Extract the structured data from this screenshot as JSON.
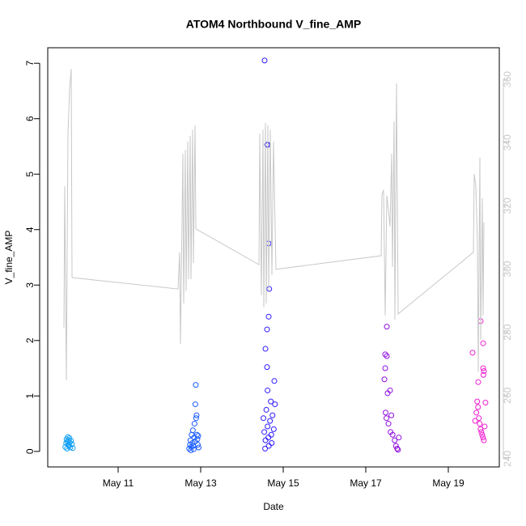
{
  "chart_data": {
    "type": "scatter",
    "title": "ATOM4 Northbound V_fine_AMP",
    "xlabel": "Date",
    "ylabel": "V_fine_AMP",
    "xlim": [
      9.294,
      20.235
    ],
    "ylim": [
      -0.28,
      7.28
    ],
    "y2lim": [
      237.4,
      370
    ],
    "xticks": [
      {
        "value": 11,
        "label": "May 11"
      },
      {
        "value": 13,
        "label": "May 13"
      },
      {
        "value": 15,
        "label": "May 15"
      },
      {
        "value": 17,
        "label": "May 17"
      },
      {
        "value": 19,
        "label": "May 19"
      }
    ],
    "yticks": [
      0,
      1,
      2,
      3,
      4,
      5,
      6,
      7
    ],
    "y2ticks": [
      240,
      260,
      280,
      300,
      320,
      340,
      360
    ],
    "series": [
      {
        "type": "scatter",
        "color": "#12a0f5",
        "x": [
          9.72,
          9.74,
          9.75,
          9.76,
          9.77,
          9.78,
          9.79,
          9.8,
          9.81,
          9.82,
          9.83,
          9.84,
          9.86,
          9.88,
          9.9
        ],
        "values": [
          0.08,
          0.15,
          0.22,
          0.05,
          0.18,
          0.26,
          0.12,
          0.2,
          0.1,
          0.24,
          0.16,
          0.07,
          0.19,
          0.13,
          0.06
        ]
      },
      {
        "type": "scatter",
        "color": "#1a5cff",
        "x": [
          12.72,
          12.74,
          12.75,
          12.77,
          12.78,
          12.8,
          12.81,
          12.82,
          12.84,
          12.85,
          12.86,
          12.87,
          12.88,
          12.89,
          12.9,
          12.91,
          12.92,
          12.93,
          12.94,
          12.95,
          12.76,
          12.83
        ],
        "values": [
          0.05,
          0.12,
          0.2,
          0.08,
          0.3,
          0.15,
          0.38,
          0.1,
          0.25,
          0.5,
          0.18,
          0.85,
          1.2,
          0.6,
          0.65,
          0.3,
          0.22,
          0.12,
          0.28,
          0.07,
          0.02,
          0.04
        ]
      },
      {
        "type": "scatter",
        "color": "#2f1aff",
        "x": [
          14.549,
          14.608,
          14.63,
          14.647,
          14.66,
          14.647,
          14.608,
          14.569,
          14.608,
          14.784,
          14.62,
          14.7,
          14.52,
          14.54,
          14.57,
          14.59,
          14.62,
          14.65,
          14.68,
          14.71,
          14.74,
          14.77,
          14.8,
          14.56,
          14.64,
          14.72
        ],
        "values": [
          7.05,
          5.53,
          5.53,
          3.75,
          2.93,
          2.43,
          2.2,
          1.85,
          1.52,
          1.27,
          1.1,
          0.9,
          0.6,
          0.35,
          0.2,
          0.75,
          0.45,
          0.1,
          0.55,
          0.3,
          0.65,
          0.4,
          0.85,
          0.05,
          0.25,
          0.15
        ]
      },
      {
        "type": "scatter",
        "color": "#9010e0",
        "x": [
          17.51,
          17.471,
          17.51,
          17.471,
          17.451,
          17.588,
          17.529,
          17.48,
          17.5,
          17.55,
          17.6,
          17.62,
          17.65,
          17.7,
          17.73,
          17.76,
          17.78,
          17.8
        ],
        "values": [
          2.25,
          1.75,
          1.72,
          1.5,
          1.3,
          1.1,
          1.05,
          0.7,
          0.6,
          0.5,
          0.35,
          0.65,
          0.3,
          0.2,
          0.1,
          0.05,
          0.03,
          0.25
        ]
      },
      {
        "type": "scatter",
        "color": "#f020d0",
        "x": [
          19.784,
          19.843,
          19.588,
          19.843,
          19.863,
          19.85,
          19.725,
          19.7,
          19.72,
          19.74,
          19.76,
          19.78,
          19.8,
          19.82,
          19.84,
          19.86,
          19.88,
          19.65,
          19.68,
          19.9
        ],
        "values": [
          2.35,
          1.95,
          1.78,
          1.5,
          1.45,
          1.38,
          1.25,
          0.9,
          0.8,
          0.6,
          0.5,
          0.4,
          0.35,
          0.3,
          0.25,
          0.2,
          0.45,
          0.55,
          0.7,
          0.88
        ]
      },
      {
        "type": "line",
        "color": "#c8c8c8",
        "axis": "y2",
        "x": [
          9.686,
          9.706,
          9.745,
          9.784,
          9.824,
          9.863,
          9.882,
          12.451,
          12.49,
          12.51,
          12.569,
          12.588,
          12.627,
          12.647,
          12.686,
          12.706,
          12.745,
          12.765,
          12.804,
          12.824,
          12.863,
          12.882,
          14.412,
          14.431,
          14.471,
          14.51,
          14.529,
          14.569,
          14.588,
          14.627,
          14.647,
          14.686,
          14.725,
          14.765,
          14.824,
          17.373,
          17.392,
          17.431,
          17.471,
          17.51,
          17.549,
          17.588,
          17.627,
          17.647,
          17.686,
          17.706,
          17.745,
          17.784,
          19.608,
          19.627,
          19.667,
          19.706,
          19.725,
          19.765,
          19.784,
          19.824,
          19.843,
          19.863
        ],
        "values": [
          281.5,
          326.2,
          264.8,
          342.9,
          356.9,
          363.3,
          297.3,
          293.7,
          305.3,
          276.3,
          336.5,
          289.1,
          337.7,
          293.0,
          340.3,
          296.8,
          342.1,
          296.8,
          344.1,
          301.9,
          345.4,
          312.7,
          301.4,
          342.9,
          291.7,
          344.1,
          287.9,
          346.2,
          289.1,
          345.4,
          293.0,
          344.1,
          298.1,
          340.3,
          299.9,
          304.2,
          323.7,
          325.0,
          285.3,
          323.2,
          318.6,
          313.4,
          336.5,
          300.6,
          346.7,
          284.0,
          358.7,
          285.8,
          305.3,
          330.1,
          326.2,
          308.3,
          267.4,
          335.2,
          277.6,
          322.4,
          285.3,
          314.7
        ]
      }
    ]
  }
}
